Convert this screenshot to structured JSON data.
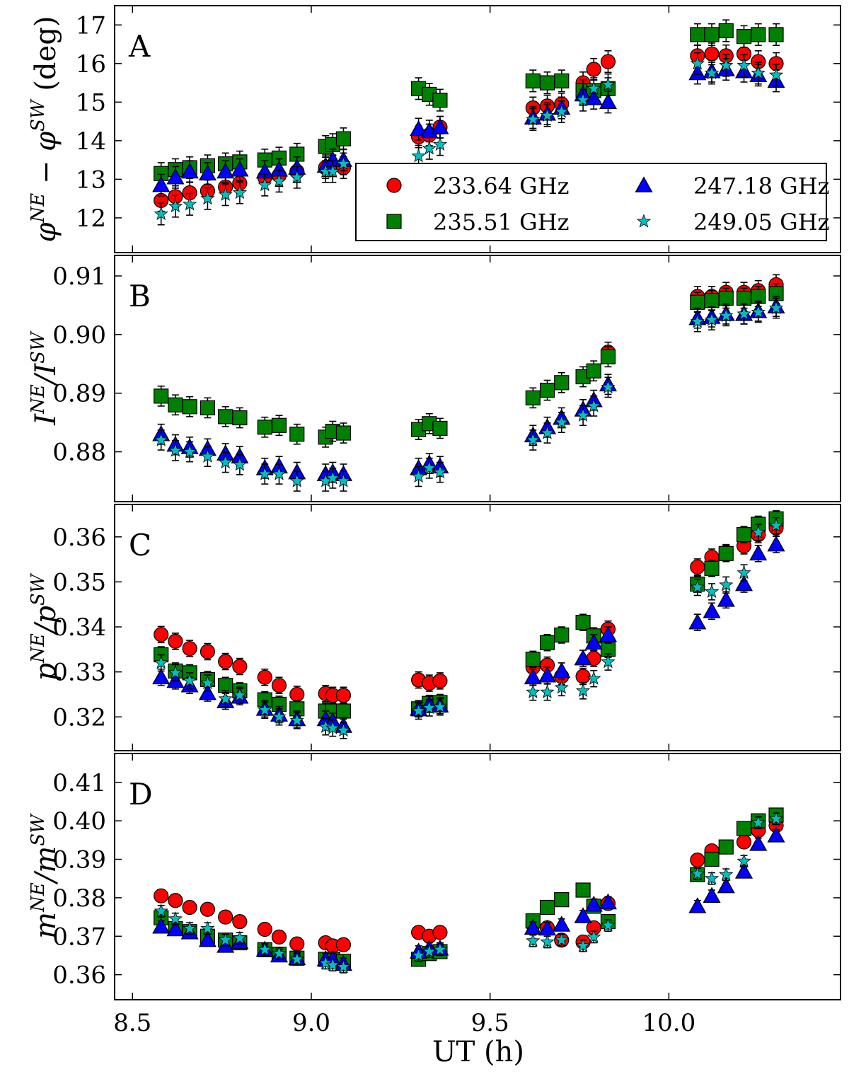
{
  "colors": {
    "233.64 GHz": "#ff0000",
    "235.51 GHz": "#008000",
    "247.18 GHz": "#0000ff",
    "249.05 GHz": "#00bfbf",
    "axes": "#000000",
    "errorbar": "#000000"
  },
  "legend": {
    "entries": [
      {
        "label": "233.64 GHz",
        "marker": "circle"
      },
      {
        "label": "235.51 GHz",
        "marker": "square"
      },
      {
        "label": "247.18 GHz",
        "marker": "triangle"
      },
      {
        "label": "249.05 GHz",
        "marker": "star"
      }
    ]
  },
  "chart_data": {
    "type": "scatter",
    "xlabel": "UT (h)",
    "xlim": [
      8.45,
      10.48
    ],
    "xticks": [
      8.5,
      9.0,
      9.5,
      10.0
    ],
    "xtick_labels": [
      "8.5",
      "9.0",
      "9.5",
      "10.0"
    ],
    "x": [
      8.58,
      8.62,
      8.66,
      8.71,
      8.76,
      8.8,
      8.87,
      8.91,
      8.96,
      9.04,
      9.06,
      9.09,
      9.3,
      9.33,
      9.36,
      9.62,
      9.66,
      9.7,
      9.76,
      9.79,
      9.83,
      10.08,
      10.12,
      10.16,
      10.21,
      10.25,
      10.3
    ],
    "panels": [
      {
        "letter": "A",
        "ylabel": "φ^NE − φ^SW (deg)",
        "ylabel_base": "φ",
        "ylabel_sup1": "NE",
        "ylabel_mid": " − φ",
        "ylabel_sup2": "SW",
        "ylabel_tail": " (deg)",
        "ylim": [
          11.1,
          17.5
        ],
        "yticks": [
          12,
          13,
          14,
          15,
          16,
          17
        ],
        "ytick_labels": [
          "12",
          "13",
          "14",
          "15",
          "16",
          "17"
        ],
        "error": 0.28,
        "series": [
          {
            "name": "233.64 GHz",
            "marker": "circle",
            "values": [
              12.45,
              12.55,
              12.65,
              12.7,
              12.8,
              12.9,
              13.05,
              13.1,
              13.2,
              13.3,
              13.35,
              13.3,
              14.1,
              14.15,
              14.35,
              14.85,
              14.9,
              14.95,
              15.5,
              15.85,
              16.05,
              16.2,
              16.25,
              16.2,
              16.25,
              16.05,
              16.0
            ]
          },
          {
            "name": "235.51 GHz",
            "marker": "square",
            "values": [
              13.15,
              13.25,
              13.3,
              13.35,
              13.4,
              13.45,
              13.5,
              13.55,
              13.65,
              13.85,
              13.9,
              14.05,
              15.35,
              15.2,
              15.05,
              15.55,
              15.5,
              15.55,
              15.3,
              15.3,
              15.35,
              16.75,
              16.75,
              16.85,
              16.7,
              16.75,
              16.75
            ]
          },
          {
            "name": "247.18 GHz",
            "marker": "triangle",
            "values": [
              12.85,
              13.05,
              13.2,
              13.15,
              13.2,
              13.25,
              13.2,
              13.25,
              13.3,
              13.35,
              13.5,
              13.5,
              14.3,
              14.25,
              14.35,
              14.6,
              14.7,
              14.85,
              15.2,
              15.1,
              15.0,
              15.75,
              15.8,
              15.85,
              15.8,
              15.7,
              15.55
            ]
          },
          {
            "name": "249.05 GHz",
            "marker": "star",
            "values": [
              12.1,
              12.3,
              12.35,
              12.5,
              12.6,
              12.65,
              12.85,
              12.95,
              13.05,
              13.2,
              13.2,
              13.4,
              13.6,
              13.8,
              13.9,
              14.55,
              14.65,
              14.75,
              15.05,
              15.35,
              15.45,
              16.0,
              15.75,
              15.95,
              15.95,
              15.75,
              15.7
            ]
          }
        ]
      },
      {
        "letter": "B",
        "ylabel": "I^NE/I^SW",
        "ylabel_base": "I",
        "ylabel_sup1": "NE",
        "ylabel_mid": "/I",
        "ylabel_sup2": "SW",
        "ylabel_tail": "",
        "ylim": [
          0.8715,
          0.9135
        ],
        "yticks": [
          0.88,
          0.89,
          0.9,
          0.91
        ],
        "ytick_labels": [
          "0.88",
          "0.89",
          "0.90",
          "0.91"
        ],
        "error": 0.0017,
        "series": [
          {
            "name": "233.64 GHz",
            "marker": "circle",
            "values": [
              null,
              null,
              null,
              null,
              null,
              null,
              null,
              null,
              null,
              null,
              null,
              null,
              null,
              null,
              null,
              null,
              null,
              null,
              null,
              null,
              0.897,
              0.9065,
              0.9065,
              0.9072,
              0.9072,
              0.9075,
              0.9085
            ]
          },
          {
            "name": "235.51 GHz",
            "marker": "square",
            "values": [
              0.8895,
              0.888,
              0.8877,
              0.8875,
              0.886,
              0.8858,
              0.8842,
              0.8845,
              0.883,
              0.8825,
              0.8835,
              0.8832,
              0.8838,
              0.8848,
              0.884,
              0.8892,
              0.8905,
              0.8918,
              0.8928,
              0.8938,
              0.8962,
              0.9055,
              0.9058,
              0.9062,
              0.9062,
              0.9065,
              0.907
            ]
          },
          {
            "name": "247.18 GHz",
            "marker": "triangle",
            "values": [
              0.883,
              0.8812,
              0.8808,
              0.8805,
              0.8797,
              0.8792,
              0.8772,
              0.8775,
              0.8765,
              0.8762,
              0.8765,
              0.8762,
              0.8772,
              0.878,
              0.8775,
              0.8828,
              0.8842,
              0.8858,
              0.8872,
              0.8888,
              0.8915,
              0.9028,
              0.903,
              0.9035,
              0.9035,
              0.904,
              0.9048
            ]
          },
          {
            "name": "249.05 GHz",
            "marker": "star",
            "values": [
              0.882,
              0.8802,
              0.88,
              0.8792,
              0.8782,
              0.8778,
              0.8762,
              0.8762,
              0.875,
              0.875,
              0.8755,
              0.875,
              0.8758,
              0.8772,
              0.8765,
              0.882,
              0.8832,
              0.885,
              0.8862,
              0.8878,
              0.891,
              0.9022,
              0.9025,
              0.9032,
              0.9035,
              0.9038,
              0.9045
            ]
          }
        ]
      },
      {
        "letter": "C",
        "ylabel": "p^NE/p^SW",
        "ylabel_base": "p",
        "ylabel_sup1": "NE",
        "ylabel_mid": "/p",
        "ylabel_sup2": "SW",
        "ylabel_tail": "",
        "ylim": [
          0.3125,
          0.3672
        ],
        "yticks": [
          0.32,
          0.33,
          0.34,
          0.35,
          0.36
        ],
        "ytick_labels": [
          "0.32",
          "0.33",
          "0.34",
          "0.35",
          "0.36"
        ],
        "error": 0.0018,
        "series": [
          {
            "name": "233.64 GHz",
            "marker": "circle",
            "values": [
              0.3383,
              0.3368,
              0.3352,
              0.3345,
              0.3323,
              0.3312,
              0.3288,
              0.327,
              0.325,
              0.3252,
              0.3248,
              0.3248,
              0.3282,
              0.3275,
              0.328,
              0.331,
              0.3315,
              0.329,
              0.329,
              0.333,
              0.3395,
              0.3533,
              0.3555,
              0.3565,
              0.358,
              0.3605,
              0.362
            ]
          },
          {
            "name": "235.51 GHz",
            "marker": "square",
            "values": [
              0.3338,
              0.3302,
              0.3298,
              0.3283,
              0.327,
              0.3258,
              0.3238,
              0.3228,
              0.3218,
              0.3213,
              0.3213,
              0.3213,
              0.3218,
              0.323,
              0.3232,
              0.3328,
              0.3365,
              0.3382,
              0.341,
              0.338,
              0.335,
              0.3495,
              0.353,
              0.3563,
              0.3605,
              0.3628,
              0.364
            ]
          },
          {
            "name": "247.18 GHz",
            "marker": "triangle",
            "values": [
              0.3288,
              0.328,
              0.327,
              0.3253,
              0.3235,
              0.3245,
              0.3218,
              0.3205,
              0.3195,
              0.3195,
              0.319,
              0.318,
              0.3218,
              0.3228,
              0.3225,
              0.3288,
              0.3292,
              0.3302,
              0.333,
              0.3365,
              0.3382,
              0.341,
              0.3435,
              0.346,
              0.3495,
              0.3563,
              0.3583
            ]
          },
          {
            "name": "249.05 GHz",
            "marker": "star",
            "values": [
              0.332,
              0.3298,
              0.328,
              0.3275,
              0.324,
              0.3248,
              0.3215,
              0.32,
              0.3192,
              0.3178,
              0.3175,
              0.317,
              0.3213,
              0.322,
              0.3222,
              0.3255,
              0.3255,
              0.3265,
              0.3258,
              0.3285,
              0.3322,
              0.3488,
              0.3478,
              0.3493,
              0.352,
              0.361,
              0.3625
            ]
          }
        ]
      },
      {
        "letter": "D",
        "ylabel": "m^NE/m^SW",
        "ylabel_base": "m",
        "ylabel_sup1": "NE",
        "ylabel_mid": "/m",
        "ylabel_sup2": "SW",
        "ylabel_tail": "",
        "ylim": [
          0.3535,
          0.4175
        ],
        "yticks": [
          0.36,
          0.37,
          0.38,
          0.39,
          0.4,
          0.41
        ],
        "ytick_labels": [
          "0.36",
          "0.37",
          "0.38",
          "0.39",
          "0.40",
          "0.41"
        ],
        "error": 0.0015,
        "series": [
          {
            "name": "233.64 GHz",
            "marker": "circle",
            "values": [
              0.3805,
              0.3793,
              0.3775,
              0.377,
              0.375,
              0.3738,
              0.3718,
              0.3698,
              0.368,
              0.3683,
              0.3675,
              0.3678,
              0.371,
              0.37,
              0.371,
              0.373,
              0.3722,
              0.369,
              0.3685,
              0.3722,
              0.3785,
              0.3898,
              0.3922,
              0.3932,
              0.3945,
              0.3975,
              0.3988
            ]
          },
          {
            "name": "235.51 GHz",
            "marker": "square",
            "values": [
              0.3748,
              0.372,
              0.3712,
              0.37,
              0.369,
              0.3683,
              0.3665,
              0.3653,
              0.3643,
              0.364,
              0.364,
              0.3635,
              0.364,
              0.3655,
              0.366,
              0.374,
              0.3775,
              0.3795,
              0.382,
              0.3778,
              0.3738,
              0.386,
              0.39,
              0.3932,
              0.398,
              0.4,
              0.4015
            ]
          },
          {
            "name": "247.18 GHz",
            "marker": "triangle",
            "values": [
              0.3725,
              0.3718,
              0.371,
              0.369,
              0.3675,
              0.3685,
              0.3665,
              0.365,
              0.3643,
              0.364,
              0.364,
              0.3628,
              0.366,
              0.3668,
              0.3668,
              0.3722,
              0.372,
              0.373,
              0.3752,
              0.3782,
              0.3788,
              0.3778,
              0.3805,
              0.383,
              0.3868,
              0.394,
              0.3962
            ]
          },
          {
            "name": "249.05 GHz",
            "marker": "star",
            "values": [
              0.3765,
              0.3745,
              0.372,
              0.372,
              0.369,
              0.3695,
              0.3665,
              0.3655,
              0.364,
              0.363,
              0.3625,
              0.362,
              0.365,
              0.366,
              0.3665,
              0.3688,
              0.3685,
              0.369,
              0.3675,
              0.3698,
              0.3728,
              0.3862,
              0.385,
              0.386,
              0.3895,
              0.3995,
              0.4005
            ]
          }
        ]
      }
    ]
  }
}
